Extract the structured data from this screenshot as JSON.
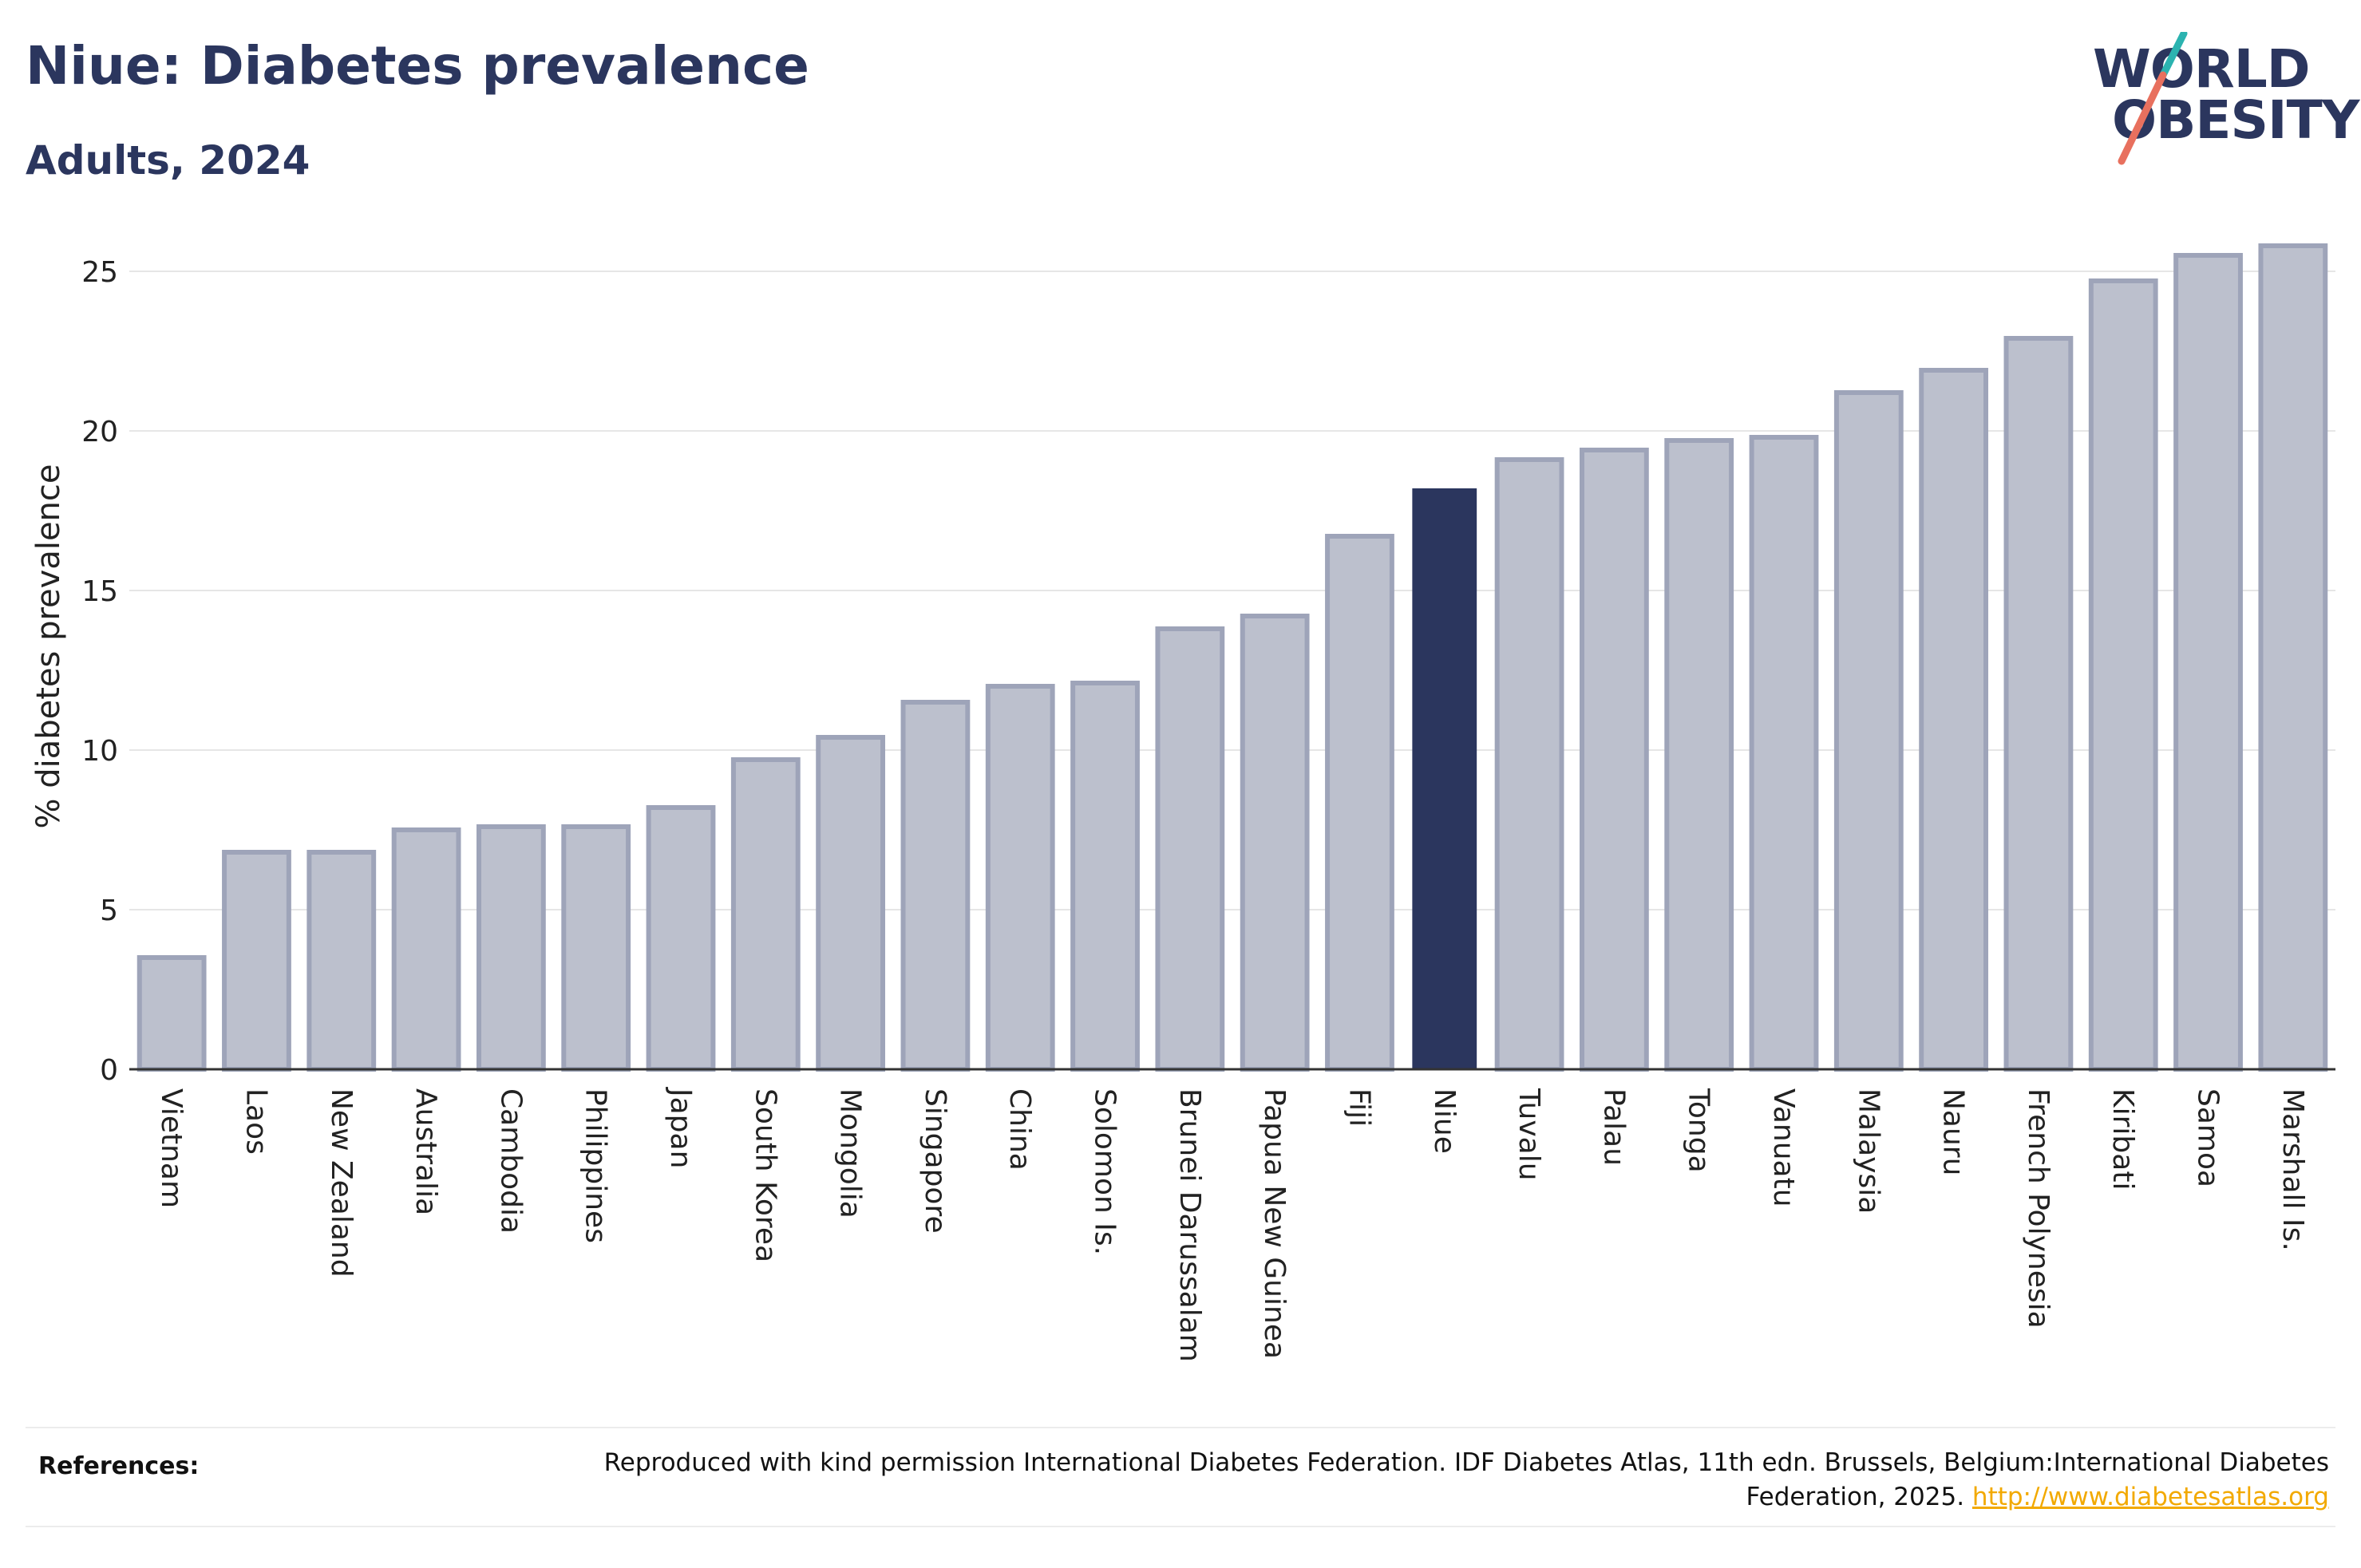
{
  "title": "Niue: Diabetes prevalence",
  "subtitle": "Adults, 2024",
  "logo": {
    "line1": "WORLD",
    "line2": "OBESITY"
  },
  "colors": {
    "bar": "#bcc0cd",
    "bar_border": "#9ea4b9",
    "highlight": "#2b365e",
    "grid": "#e6e6e6",
    "axis": "#333333",
    "logo_teal": "#2bb3b0",
    "logo_coral": "#e8705e",
    "link": "#f2a900"
  },
  "references": {
    "label": "References:",
    "text": "Reproduced with kind permission International Diabetes Federation. IDF Diabetes Atlas, 11th edn. Brussels, Belgium:International Diabetes Federation, 2025.",
    "link": "http://www.diabetesatlas.org"
  },
  "chart_data": {
    "type": "bar",
    "ylabel": "% diabetes prevalence",
    "ylim": [
      0,
      26
    ],
    "yticks": [
      0,
      5,
      10,
      15,
      20,
      25
    ],
    "grid": true,
    "highlight": "Niue",
    "categories": [
      "Vietnam",
      "Laos",
      "New Zealand",
      "Australia",
      "Cambodia",
      "Philippines",
      "Japan",
      "South Korea",
      "Mongolia",
      "Singapore",
      "China",
      "Solomon Is.",
      "Brunei Darussalam",
      "Papua New Guinea",
      "Fiji",
      "Niue",
      "Tuvalu",
      "Palau",
      "Tonga",
      "Vanuatu",
      "Malaysia",
      "Nauru",
      "French Polynesia",
      "Kiribati",
      "Samoa",
      "Marshall Is."
    ],
    "values": [
      3.5,
      6.8,
      6.8,
      7.5,
      7.6,
      7.6,
      8.2,
      9.7,
      10.4,
      11.5,
      12.0,
      12.1,
      13.8,
      14.2,
      16.7,
      18.2,
      19.1,
      19.4,
      19.7,
      19.8,
      21.2,
      21.9,
      22.9,
      24.7,
      25.5,
      25.8
    ]
  }
}
